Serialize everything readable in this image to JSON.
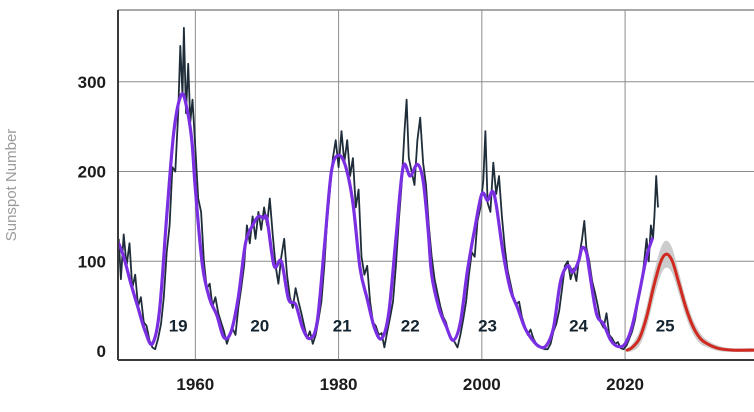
{
  "chart_data": {
    "type": "line",
    "title": "",
    "xlabel": "",
    "ylabel": "Sunspot Number",
    "xlim": [
      1949.2,
      2038
    ],
    "ylim": [
      -10,
      380
    ],
    "grid": true,
    "legend": "none",
    "x_ticks": [
      {
        "value": 1960,
        "label": "1960"
      },
      {
        "value": 1980,
        "label": "1980"
      },
      {
        "value": 2000,
        "label": "2000"
      },
      {
        "value": 2020,
        "label": "2020"
      }
    ],
    "y_ticks": [
      {
        "value": 0,
        "label": "0"
      },
      {
        "value": 100,
        "label": "100"
      },
      {
        "value": 200,
        "label": "200"
      },
      {
        "value": 300,
        "label": "300"
      }
    ],
    "cycle_labels": [
      {
        "label": "19",
        "x": 1957.6,
        "y": 22
      },
      {
        "label": "20",
        "x": 1969.0,
        "y": 22
      },
      {
        "label": "21",
        "x": 1980.5,
        "y": 22
      },
      {
        "label": "22",
        "x": 1990.0,
        "y": 22
      },
      {
        "label": "23",
        "x": 2000.8,
        "y": 22
      },
      {
        "label": "24",
        "x": 2013.5,
        "y": 22
      },
      {
        "label": "25",
        "x": 2025.6,
        "y": 22
      }
    ],
    "colors": {
      "monthly": "#1f2d3a",
      "smoothed": "#7b2fe2",
      "prediction": "#d02a20",
      "band": "#c6c6c6",
      "grid": "#8c8c8c",
      "axis": "#3a3a3a",
      "tick_text": "#1c1c1c",
      "cycle_text": "#142430",
      "ylabel_text": "#9b9b9b",
      "background": "#ffffff"
    },
    "series": [
      {
        "name": "monthly-sunspot-number",
        "style": "jagged",
        "points": [
          [
            1949.3,
            125
          ],
          [
            1949.6,
            80
          ],
          [
            1950.0,
            130
          ],
          [
            1950.4,
            95
          ],
          [
            1950.8,
            120
          ],
          [
            1951.2,
            70
          ],
          [
            1951.6,
            85
          ],
          [
            1952.0,
            50
          ],
          [
            1952.4,
            60
          ],
          [
            1952.8,
            32
          ],
          [
            1953.2,
            28
          ],
          [
            1953.6,
            12
          ],
          [
            1954.0,
            4
          ],
          [
            1954.4,
            2
          ],
          [
            1954.8,
            14
          ],
          [
            1955.2,
            30
          ],
          [
            1955.6,
            60
          ],
          [
            1956.0,
            110
          ],
          [
            1956.4,
            140
          ],
          [
            1956.8,
            205
          ],
          [
            1957.2,
            200
          ],
          [
            1957.6,
            265
          ],
          [
            1957.9,
            340
          ],
          [
            1958.2,
            285
          ],
          [
            1958.4,
            360
          ],
          [
            1958.7,
            265
          ],
          [
            1959.0,
            320
          ],
          [
            1959.3,
            255
          ],
          [
            1959.6,
            280
          ],
          [
            1960.0,
            225
          ],
          [
            1960.4,
            170
          ],
          [
            1960.8,
            155
          ],
          [
            1961.2,
            100
          ],
          [
            1961.6,
            70
          ],
          [
            1962.0,
            75
          ],
          [
            1962.4,
            50
          ],
          [
            1962.8,
            60
          ],
          [
            1963.2,
            42
          ],
          [
            1963.6,
            32
          ],
          [
            1964.0,
            22
          ],
          [
            1964.4,
            8
          ],
          [
            1964.8,
            18
          ],
          [
            1965.2,
            25
          ],
          [
            1965.6,
            18
          ],
          [
            1966.0,
            48
          ],
          [
            1966.4,
            70
          ],
          [
            1966.8,
            95
          ],
          [
            1967.2,
            140
          ],
          [
            1967.6,
            120
          ],
          [
            1968.0,
            150
          ],
          [
            1968.4,
            125
          ],
          [
            1968.8,
            155
          ],
          [
            1969.2,
            135
          ],
          [
            1969.6,
            160
          ],
          [
            1970.0,
            140
          ],
          [
            1970.4,
            170
          ],
          [
            1970.8,
            130
          ],
          [
            1971.2,
            95
          ],
          [
            1971.6,
            75
          ],
          [
            1972.0,
            105
          ],
          [
            1972.4,
            125
          ],
          [
            1972.8,
            85
          ],
          [
            1973.2,
            60
          ],
          [
            1973.6,
            48
          ],
          [
            1974.0,
            70
          ],
          [
            1974.4,
            55
          ],
          [
            1974.8,
            42
          ],
          [
            1975.2,
            28
          ],
          [
            1975.6,
            14
          ],
          [
            1976.0,
            22
          ],
          [
            1976.4,
            8
          ],
          [
            1976.8,
            18
          ],
          [
            1977.2,
            35
          ],
          [
            1977.6,
            55
          ],
          [
            1978.0,
            95
          ],
          [
            1978.4,
            145
          ],
          [
            1978.8,
            180
          ],
          [
            1979.2,
            215
          ],
          [
            1979.6,
            235
          ],
          [
            1980.0,
            205
          ],
          [
            1980.4,
            245
          ],
          [
            1980.8,
            210
          ],
          [
            1981.2,
            235
          ],
          [
            1981.6,
            195
          ],
          [
            1982.0,
            215
          ],
          [
            1982.4,
            160
          ],
          [
            1982.8,
            180
          ],
          [
            1983.2,
            105
          ],
          [
            1983.6,
            85
          ],
          [
            1984.0,
            95
          ],
          [
            1984.4,
            55
          ],
          [
            1984.8,
            32
          ],
          [
            1985.2,
            28
          ],
          [
            1985.6,
            18
          ],
          [
            1986.0,
            20
          ],
          [
            1986.4,
            4
          ],
          [
            1986.8,
            22
          ],
          [
            1987.2,
            38
          ],
          [
            1987.6,
            55
          ],
          [
            1988.0,
            95
          ],
          [
            1988.4,
            145
          ],
          [
            1988.8,
            185
          ],
          [
            1989.2,
            245
          ],
          [
            1989.5,
            280
          ],
          [
            1989.8,
            215
          ],
          [
            1990.2,
            200
          ],
          [
            1990.6,
            185
          ],
          [
            1991.0,
            235
          ],
          [
            1991.4,
            260
          ],
          [
            1991.8,
            210
          ],
          [
            1992.2,
            185
          ],
          [
            1992.6,
            140
          ],
          [
            1993.0,
            105
          ],
          [
            1993.4,
            80
          ],
          [
            1993.8,
            65
          ],
          [
            1994.2,
            50
          ],
          [
            1994.6,
            38
          ],
          [
            1995.0,
            32
          ],
          [
            1995.4,
            20
          ],
          [
            1995.8,
            14
          ],
          [
            1996.2,
            10
          ],
          [
            1996.6,
            4
          ],
          [
            1997.0,
            18
          ],
          [
            1997.4,
            35
          ],
          [
            1997.8,
            55
          ],
          [
            1998.2,
            85
          ],
          [
            1998.6,
            110
          ],
          [
            1999.0,
            105
          ],
          [
            1999.4,
            145
          ],
          [
            1999.8,
            160
          ],
          [
            2000.2,
            190
          ],
          [
            2000.5,
            245
          ],
          [
            2000.8,
            165
          ],
          [
            2001.2,
            155
          ],
          [
            2001.6,
            210
          ],
          [
            2002.0,
            175
          ],
          [
            2002.4,
            195
          ],
          [
            2002.8,
            150
          ],
          [
            2003.2,
            115
          ],
          [
            2003.6,
            90
          ],
          [
            2004.0,
            75
          ],
          [
            2004.4,
            60
          ],
          [
            2004.8,
            52
          ],
          [
            2005.2,
            55
          ],
          [
            2005.6,
            38
          ],
          [
            2006.0,
            28
          ],
          [
            2006.4,
            18
          ],
          [
            2006.8,
            24
          ],
          [
            2007.2,
            14
          ],
          [
            2007.6,
            8
          ],
          [
            2008.0,
            6
          ],
          [
            2008.4,
            3
          ],
          [
            2008.8,
            2
          ],
          [
            2009.2,
            2
          ],
          [
            2009.6,
            8
          ],
          [
            2010.0,
            22
          ],
          [
            2010.4,
            30
          ],
          [
            2010.8,
            45
          ],
          [
            2011.2,
            70
          ],
          [
            2011.6,
            95
          ],
          [
            2012.0,
            100
          ],
          [
            2012.4,
            80
          ],
          [
            2012.8,
            92
          ],
          [
            2013.2,
            78
          ],
          [
            2013.6,
            105
          ],
          [
            2014.0,
            125
          ],
          [
            2014.3,
            145
          ],
          [
            2014.6,
            115
          ],
          [
            2015.0,
            100
          ],
          [
            2015.4,
            78
          ],
          [
            2015.8,
            65
          ],
          [
            2016.2,
            50
          ],
          [
            2016.6,
            32
          ],
          [
            2017.0,
            26
          ],
          [
            2017.4,
            42
          ],
          [
            2017.8,
            18
          ],
          [
            2018.2,
            14
          ],
          [
            2018.6,
            8
          ],
          [
            2019.0,
            10
          ],
          [
            2019.4,
            3
          ],
          [
            2019.8,
            2
          ],
          [
            2020.2,
            6
          ],
          [
            2020.6,
            14
          ],
          [
            2021.0,
            22
          ],
          [
            2021.4,
            35
          ],
          [
            2021.8,
            55
          ],
          [
            2022.2,
            70
          ],
          [
            2022.6,
            95
          ],
          [
            2023.0,
            125
          ],
          [
            2023.3,
            100
          ],
          [
            2023.6,
            140
          ],
          [
            2023.9,
            125
          ],
          [
            2024.1,
            150
          ],
          [
            2024.35,
            195
          ],
          [
            2024.6,
            160
          ]
        ]
      },
      {
        "name": "smoothed-sunspot-number",
        "style": "smooth",
        "points": [
          [
            1949.3,
            120
          ],
          [
            1950,
            105
          ],
          [
            1951,
            75
          ],
          [
            1952,
            48
          ],
          [
            1953,
            22
          ],
          [
            1954,
            8
          ],
          [
            1955,
            45
          ],
          [
            1956,
            150
          ],
          [
            1957,
            245
          ],
          [
            1958,
            285
          ],
          [
            1958.7,
            275
          ],
          [
            1959.5,
            235
          ],
          [
            1960,
            180
          ],
          [
            1961,
            95
          ],
          [
            1962,
            58
          ],
          [
            1963,
            40
          ],
          [
            1964,
            15
          ],
          [
            1965,
            22
          ],
          [
            1966,
            60
          ],
          [
            1967,
            120
          ],
          [
            1968,
            140
          ],
          [
            1968.8,
            150
          ],
          [
            1969.5,
            148
          ],
          [
            1970,
            147
          ],
          [
            1971,
            95
          ],
          [
            1972,
            100
          ],
          [
            1973,
            58
          ],
          [
            1974,
            52
          ],
          [
            1975,
            25
          ],
          [
            1976,
            14
          ],
          [
            1977,
            32
          ],
          [
            1978,
            115
          ],
          [
            1979,
            200
          ],
          [
            1980,
            218
          ],
          [
            1981,
            205
          ],
          [
            1982,
            165
          ],
          [
            1983,
            92
          ],
          [
            1984,
            58
          ],
          [
            1985,
            26
          ],
          [
            1986,
            14
          ],
          [
            1987,
            42
          ],
          [
            1988,
            125
          ],
          [
            1989,
            205
          ],
          [
            1990,
            195
          ],
          [
            1991,
            208
          ],
          [
            1991.8,
            190
          ],
          [
            1992.5,
            135
          ],
          [
            1993,
            85
          ],
          [
            1994,
            48
          ],
          [
            1995,
            28
          ],
          [
            1996,
            12
          ],
          [
            1997,
            32
          ],
          [
            1998,
            90
          ],
          [
            1999,
            136
          ],
          [
            2000,
            175
          ],
          [
            2000.8,
            168
          ],
          [
            2001.5,
            178
          ],
          [
            2002,
            163
          ],
          [
            2003,
            108
          ],
          [
            2004,
            68
          ],
          [
            2005,
            48
          ],
          [
            2006,
            26
          ],
          [
            2007,
            13
          ],
          [
            2008,
            5
          ],
          [
            2009,
            6
          ],
          [
            2010,
            26
          ],
          [
            2011,
            78
          ],
          [
            2012,
            95
          ],
          [
            2012.7,
            88
          ],
          [
            2013.5,
            100
          ],
          [
            2014,
            115
          ],
          [
            2014.6,
            110
          ],
          [
            2015,
            90
          ],
          [
            2016,
            42
          ],
          [
            2017,
            30
          ],
          [
            2018,
            12
          ],
          [
            2019,
            5
          ],
          [
            2020,
            8
          ],
          [
            2021,
            28
          ],
          [
            2022,
            65
          ],
          [
            2023,
            105
          ],
          [
            2023.8,
            125
          ]
        ]
      },
      {
        "name": "cycle-25-prediction",
        "style": "smooth",
        "points_with_uncertainty": [
          [
            2020.3,
            1,
            2
          ],
          [
            2021,
            4,
            4
          ],
          [
            2022,
            14,
            8
          ],
          [
            2023,
            38,
            12
          ],
          [
            2024,
            72,
            14
          ],
          [
            2025,
            100,
            15
          ],
          [
            2025.8,
            108,
            15
          ],
          [
            2026.6,
            100,
            14
          ],
          [
            2027.5,
            76,
            12
          ],
          [
            2028.5,
            48,
            10
          ],
          [
            2029.5,
            27,
            8
          ],
          [
            2030.5,
            14,
            6
          ],
          [
            2031.5,
            8,
            4
          ],
          [
            2033,
            3,
            3
          ],
          [
            2035,
            1,
            2
          ],
          [
            2038,
            1,
            2
          ]
        ]
      }
    ]
  }
}
